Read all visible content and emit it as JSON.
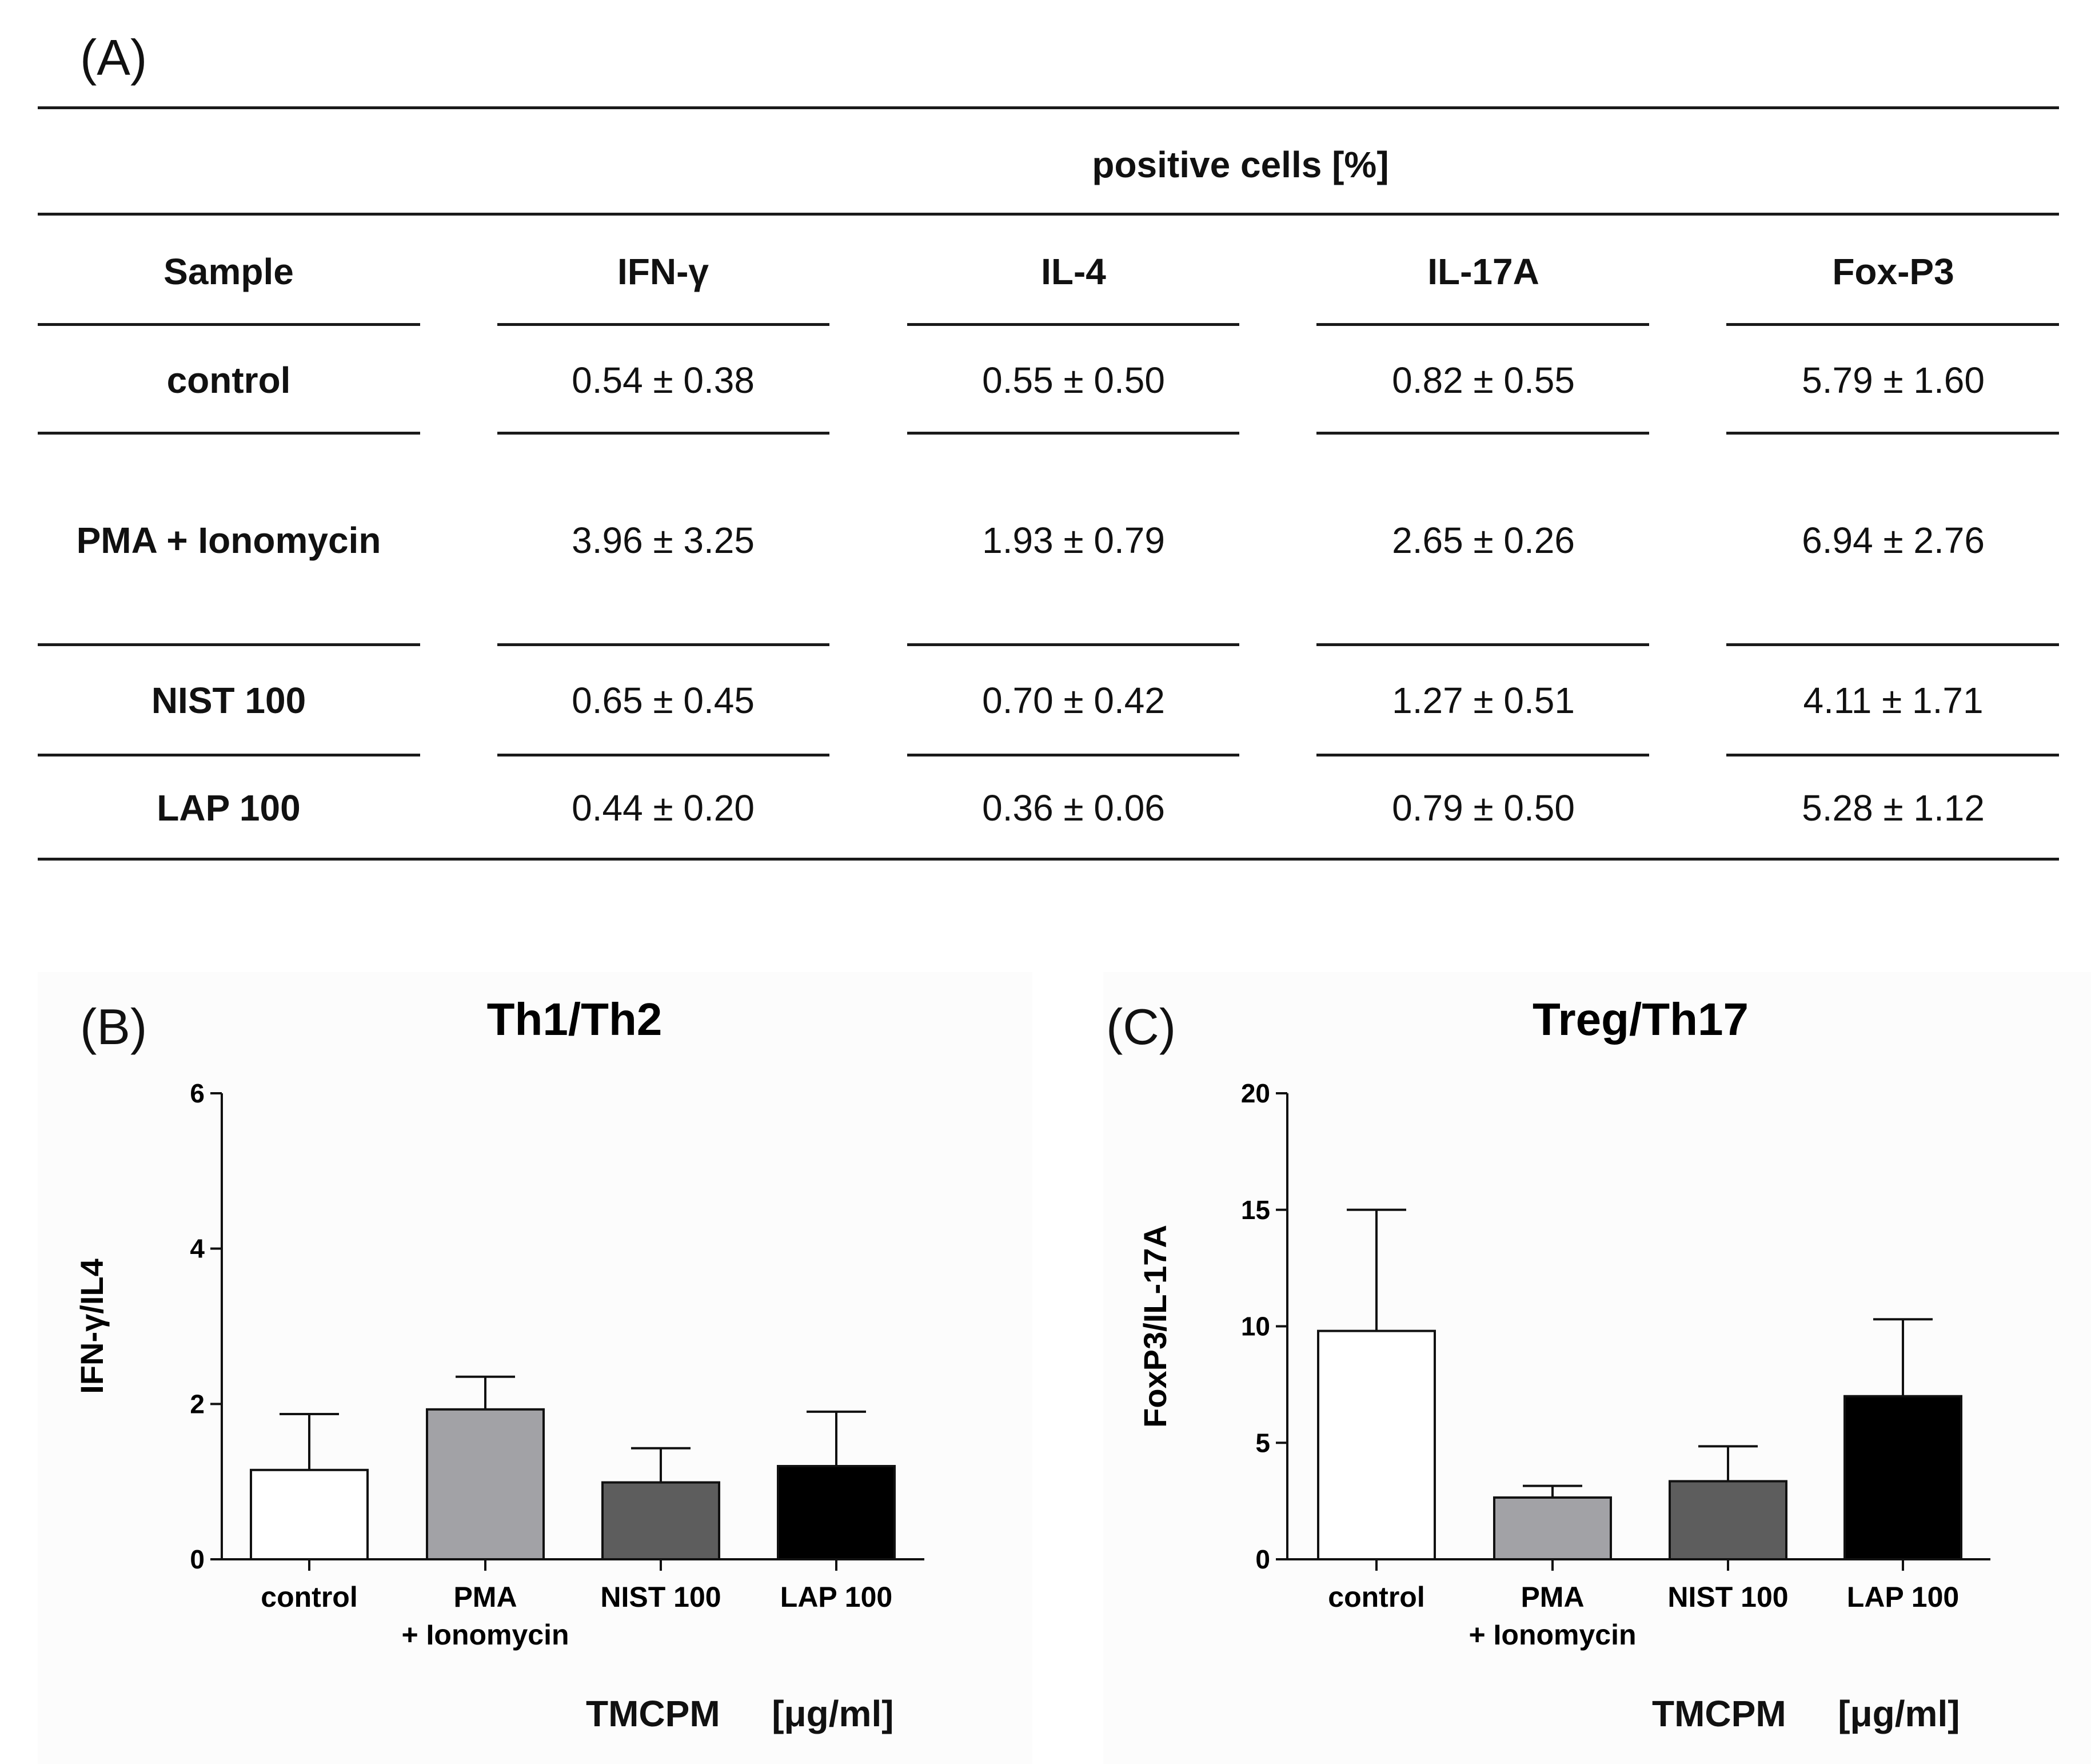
{
  "panel_a": {
    "label": "(A)",
    "header_group": "positive cells [%]",
    "columns": [
      "Sample",
      "IFN-γ",
      "IL-4",
      "IL-17A",
      "Fox-P3"
    ],
    "rows": [
      [
        "control",
        "0.54 ± 0.38",
        "0.55 ± 0.50",
        "0.82 ± 0.55",
        "5.79 ± 1.60"
      ],
      [
        "PMA + Ionomycin",
        "3.96 ± 3.25",
        "1.93 ± 0.79",
        "2.65 ± 0.26",
        "6.94 ± 2.76"
      ],
      [
        "NIST 100",
        "0.65 ± 0.45",
        "0.70 ± 0.42",
        "1.27 ± 0.51",
        "4.11 ± 1.71"
      ],
      [
        "LAP 100",
        "0.44 ± 0.20",
        "0.36 ± 0.06",
        "0.79 ± 0.50",
        "5.28 ± 1.12"
      ]
    ]
  },
  "panel_b": {
    "label": "(B)",
    "unit_caption": [
      "TMCPM",
      "[μg/ml]"
    ]
  },
  "panel_c": {
    "label": "(C)",
    "unit_caption": [
      "TMCPM",
      "[μg/ml]"
    ]
  },
  "chart_data": [
    {
      "type": "bar",
      "title": "Th1/Th2",
      "ylabel": "IFN-γ/IL4",
      "xlabel": "",
      "categories": [
        [
          "control"
        ],
        [
          "PMA",
          "+ Ionomycin"
        ],
        [
          "NIST 100"
        ],
        [
          "LAP 100"
        ]
      ],
      "values": [
        1.15,
        1.93,
        0.99,
        1.2
      ],
      "errors": [
        0.72,
        0.42,
        0.44,
        0.7
      ],
      "colors": [
        "#ffffff",
        "#a2a2a6",
        "#5d5d5d",
        "#000000"
      ],
      "ylim": [
        0,
        6
      ],
      "yticks": [
        0,
        2,
        4,
        6
      ],
      "grid": false
    },
    {
      "type": "bar",
      "title": "Treg/Th17",
      "ylabel": "FoxP3/IL-17A",
      "xlabel": "",
      "categories": [
        [
          "control"
        ],
        [
          "PMA",
          "+ Ionomycin"
        ],
        [
          "NIST 100"
        ],
        [
          "LAP 100"
        ]
      ],
      "values": [
        9.8,
        2.65,
        3.35,
        7.0
      ],
      "errors": [
        5.2,
        0.5,
        1.5,
        3.3
      ],
      "colors": [
        "#ffffff",
        "#a2a2a6",
        "#5d5d5d",
        "#000000"
      ],
      "ylim": [
        0,
        20
      ],
      "yticks": [
        0,
        5,
        10,
        15,
        20
      ],
      "grid": false
    }
  ]
}
